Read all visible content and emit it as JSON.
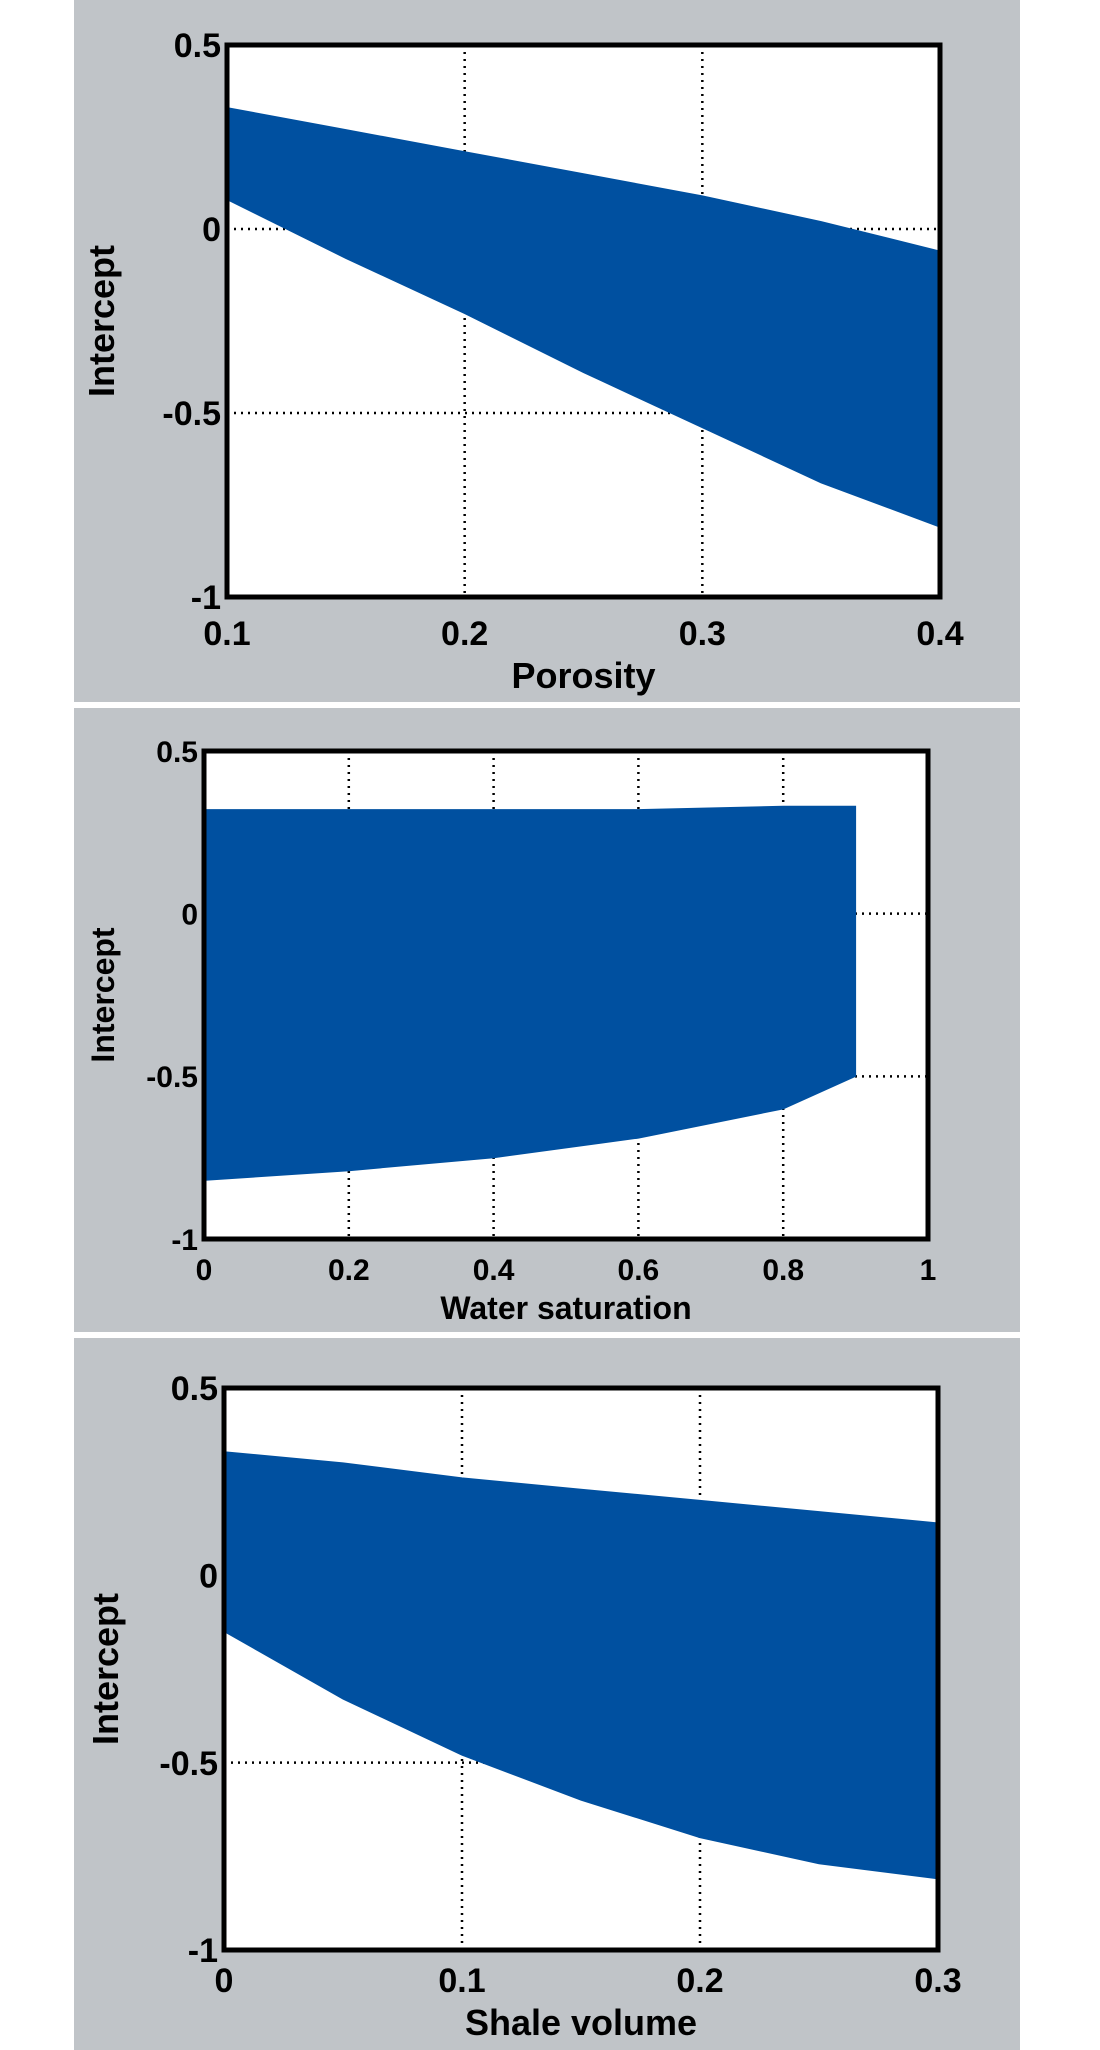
{
  "colors": {
    "fill": "#0050a0",
    "panel_bg": "#c0c4c8",
    "plot_bg": "#ffffff",
    "axis": "#000000"
  },
  "chart_data": [
    {
      "type": "area",
      "title": "",
      "xlabel": "Porosity",
      "ylabel": "Intercept",
      "xlim": [
        0.1,
        0.4
      ],
      "ylim": [
        -1,
        0.5
      ],
      "xticks": [
        0.1,
        0.2,
        0.3,
        0.4
      ],
      "xtick_labels": [
        "0.1",
        "0.2",
        "0.3",
        "0.4"
      ],
      "yticks": [
        -1,
        -0.5,
        0,
        0.5
      ],
      "ytick_labels": [
        "-1",
        "-0.5",
        "0",
        "0.5"
      ],
      "grid": "dotted",
      "series": [
        {
          "x": [
            0.1,
            0.15,
            0.2,
            0.25,
            0.3,
            0.35,
            0.4
          ],
          "upper": [
            0.33,
            0.27,
            0.21,
            0.15,
            0.09,
            0.02,
            -0.06
          ],
          "lower": [
            0.08,
            -0.08,
            -0.23,
            -0.39,
            -0.54,
            -0.69,
            -0.81
          ]
        }
      ]
    },
    {
      "type": "area",
      "title": "",
      "xlabel": "Water saturation",
      "ylabel": "Intercept",
      "xlim": [
        0,
        1
      ],
      "ylim": [
        -1,
        0.5
      ],
      "xticks": [
        0,
        0.2,
        0.4,
        0.6,
        0.8,
        1
      ],
      "xtick_labels": [
        "0",
        "0.2",
        "0.4",
        "0.6",
        "0.8",
        "1"
      ],
      "yticks": [
        -1,
        -0.5,
        0,
        0.5
      ],
      "ytick_labels": [
        "-1",
        "-0.5",
        "0",
        "0.5"
      ],
      "grid": "dotted",
      "series": [
        {
          "x": [
            0,
            0.2,
            0.4,
            0.6,
            0.8,
            0.9
          ],
          "upper": [
            0.32,
            0.32,
            0.32,
            0.32,
            0.33,
            0.33
          ],
          "lower": [
            -0.82,
            -0.79,
            -0.75,
            -0.69,
            -0.6,
            -0.5
          ]
        }
      ]
    },
    {
      "type": "area",
      "title": "",
      "xlabel": "Shale volume",
      "ylabel": "Intercept",
      "xlim": [
        0,
        0.3
      ],
      "ylim": [
        -1,
        0.5
      ],
      "xticks": [
        0,
        0.1,
        0.2,
        0.3
      ],
      "xtick_labels": [
        "0",
        "0.1",
        "0.2",
        "0.3"
      ],
      "yticks": [
        -1,
        -0.5,
        0,
        0.5
      ],
      "ytick_labels": [
        "-1",
        "-0.5",
        "0",
        "0.5"
      ],
      "grid": "dotted",
      "series": [
        {
          "x": [
            0,
            0.05,
            0.1,
            0.15,
            0.2,
            0.25,
            0.3
          ],
          "upper": [
            0.33,
            0.3,
            0.26,
            0.23,
            0.2,
            0.17,
            0.14
          ],
          "lower": [
            -0.15,
            -0.33,
            -0.48,
            -0.6,
            -0.7,
            -0.77,
            -0.81
          ]
        }
      ]
    }
  ]
}
